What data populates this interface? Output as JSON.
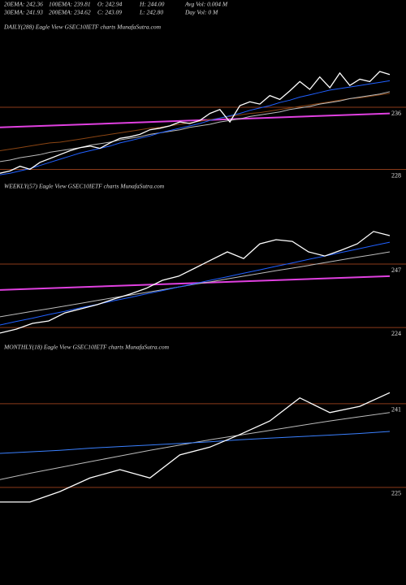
{
  "header": {
    "rows": [
      [
        "20EMA: 242.36",
        "100EMA: 239.81",
        "O: 242.94",
        "H: 244.00",
        "Avg Vol: 0.004 M"
      ],
      [
        "30EMA: 241.93",
        "200EMA: 234.62",
        "C: 243.09",
        "L: 242.80",
        "Day Vol: 0  M"
      ]
    ]
  },
  "chart_data": [
    {
      "type": "line",
      "title": "DAILY(288) Eagle  View  GSEC10IETF charts MunafaSutra.com",
      "ylim": [
        227,
        247.5
      ],
      "yticks": [
        236,
        228
      ],
      "grid_color": "#8b3a1a",
      "trendline": {
        "color": "#e040e0",
        "values": [
          233.4,
          235.2
        ]
      },
      "series": [
        {
          "color": "#8b4513",
          "values": [
            230.4,
            230.6,
            230.8,
            231.0,
            231.2,
            231.4,
            231.5,
            231.7,
            231.9,
            232.1,
            232.3,
            232.5,
            232.7,
            232.9,
            233.1,
            233.3,
            233.4,
            233.6,
            233.8,
            234.0,
            234.2,
            234.4,
            234.6,
            234.8,
            235.0,
            235.2,
            235.3,
            235.5,
            235.7,
            235.9,
            236.1,
            236.3,
            236.5,
            236.7,
            236.9,
            237.1,
            237.2,
            237.4,
            237.6,
            237.8
          ]
        },
        {
          "color": "#bbbbbb",
          "values": [
            229.0,
            229.2,
            229.5,
            229.7,
            229.9,
            230.2,
            230.4,
            230.6,
            230.8,
            231.1,
            231.3,
            231.5,
            231.8,
            232.0,
            232.2,
            232.5,
            232.7,
            232.9,
            233.1,
            233.4,
            233.6,
            233.8,
            234.1,
            234.3,
            234.5,
            234.8,
            235.0,
            235.2,
            235.4,
            235.7,
            235.9,
            236.1,
            236.4,
            236.6,
            236.8,
            237.1,
            237.3,
            237.5,
            237.7,
            238.0
          ]
        },
        {
          "color": "#2060ff",
          "values": [
            227.3,
            227.5,
            227.8,
            228.1,
            228.5,
            228.9,
            229.3,
            229.7,
            230.1,
            230.4,
            230.7,
            231.0,
            231.4,
            231.7,
            232.0,
            232.3,
            232.7,
            233.0,
            233.3,
            233.6,
            233.9,
            234.3,
            234.6,
            234.9,
            235.2,
            235.6,
            235.9,
            236.2,
            236.6,
            236.9,
            237.3,
            237.6,
            237.9,
            238.2,
            238.4,
            238.6,
            238.8,
            239.0,
            239.2,
            239.4
          ]
        },
        {
          "color": "#ffffff",
          "values": [
            227.5,
            227.8,
            228.4,
            228.0,
            228.9,
            229.4,
            229.9,
            230.4,
            230.8,
            231.0,
            230.7,
            231.4,
            232.0,
            232.2,
            232.5,
            233.1,
            233.3,
            233.6,
            234.1,
            233.9,
            234.3,
            235.2,
            235.7,
            234.1,
            236.2,
            236.7,
            236.4,
            237.5,
            237.0,
            238.1,
            239.3,
            238.3,
            239.9,
            238.5,
            240.4,
            238.8,
            239.6,
            239.3,
            240.6,
            240.2
          ]
        }
      ]
    },
    {
      "type": "line",
      "title": "WEEKLY(57) Eagle  View  GSEC10IETF charts MunafaSutra.com",
      "ylim": [
        220.5,
        272
      ],
      "yticks": [
        247,
        224
      ],
      "grid_color": "#8b3a1a",
      "trendline": {
        "color": "#e040e0",
        "values": [
          237.6,
          242.6
        ]
      },
      "series": [
        {
          "color": "#bbbbbb",
          "values": [
            227.9,
            228.9,
            229.9,
            230.8,
            231.8,
            232.8,
            233.8,
            234.8,
            235.7,
            236.7,
            237.7,
            238.7,
            239.7,
            240.6,
            241.6,
            242.6,
            243.6,
            244.6,
            245.5,
            246.5,
            247.5,
            248.5,
            249.5,
            250.4,
            251.4
          ]
        },
        {
          "color": "#2060ff",
          "values": [
            224.9,
            226.2,
            227.4,
            228.7,
            229.9,
            231.2,
            232.4,
            233.7,
            234.9,
            236.2,
            237.4,
            238.7,
            239.9,
            241.2,
            242.4,
            243.7,
            244.9,
            246.2,
            247.4,
            248.7,
            249.9,
            251.2,
            252.4,
            253.7,
            254.9
          ]
        },
        {
          "color": "#ffffff",
          "values": [
            222.0,
            223.4,
            225.5,
            226.4,
            229.3,
            230.8,
            232.3,
            234.3,
            236.1,
            238.2,
            241.1,
            242.6,
            245.5,
            248.5,
            251.4,
            249.0,
            254.3,
            255.8,
            255.2,
            251.4,
            249.9,
            252.0,
            254.3,
            258.8,
            257.3
          ]
        }
      ]
    },
    {
      "type": "line",
      "title": "MONTHLY(18) Eagle  View  GSEC10IETF charts MunafaSutra.com",
      "ylim": [
        221.1,
        250.6
      ],
      "yticks": [
        241,
        225
      ],
      "grid_color": "#8b3a1a",
      "series": [
        {
          "color": "#bbbbbb",
          "values": [
            226.5,
            227.7,
            228.8,
            229.9,
            231.0,
            232.1,
            233.1,
            234.1,
            235.0,
            235.9,
            236.8,
            237.7,
            238.5,
            239.3
          ]
        },
        {
          "color": "#3a80ff",
          "values": [
            231.5,
            231.8,
            232.1,
            232.5,
            232.8,
            233.1,
            233.4,
            233.7,
            234.1,
            234.4,
            234.7,
            235.0,
            235.3,
            235.7
          ]
        },
        {
          "color": "#ffffff",
          "values": [
            222.2,
            222.2,
            224.2,
            226.8,
            228.4,
            226.8,
            231.2,
            232.7,
            235.1,
            237.7,
            242.1,
            239.3,
            240.5,
            243.1
          ]
        }
      ]
    }
  ]
}
